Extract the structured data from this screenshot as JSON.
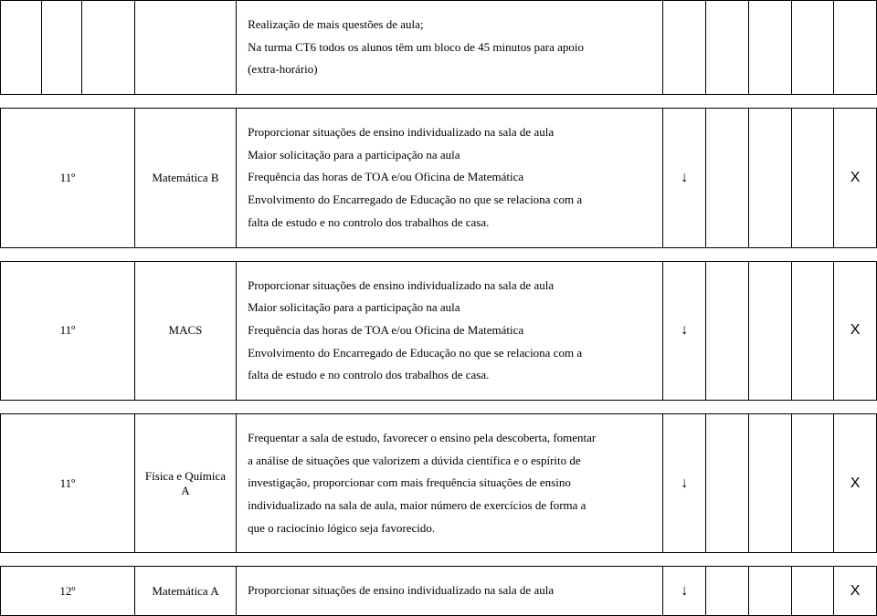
{
  "rows": [
    {
      "grade": "",
      "subject": "",
      "content_lines": [
        "Realização de mais questões de aula;",
        "Na turma CT6 todos os alunos têm um bloco de 45 minutos para apoio",
        "(extra-horário)"
      ],
      "col_f": "",
      "col_g": "",
      "col_h": "",
      "col_i": "",
      "col_j": "",
      "show_lead_cols": true
    },
    {
      "grade": "11º",
      "subject": "Matemática B",
      "content_lines": [
        "Proporcionar situações de ensino individualizado na sala de aula",
        "Maior  solicitação para a participação na aula",
        "Frequência das horas de TOA e/ou Oficina de Matemática",
        "Envolvimento do Encarregado de Educação no que se relaciona com a",
        "falta de estudo e no controlo dos trabalhos de casa."
      ],
      "col_f": "↓",
      "col_g": "",
      "col_h": "",
      "col_i": "",
      "col_j": "X",
      "show_lead_cols": false
    },
    {
      "grade": "11º",
      "subject": "MACS",
      "content_lines": [
        "Proporcionar situações de ensino individualizado na sala de aula",
        "Maior  solicitação para a participação na aula",
        "Frequência das horas de TOA e/ou Oficina de Matemática",
        "Envolvimento do Encarregado de Educação no que se relaciona com a",
        "falta de estudo e no controlo dos trabalhos de casa."
      ],
      "col_f": "↓",
      "col_g": "",
      "col_h": "",
      "col_i": "",
      "col_j": "X",
      "show_lead_cols": false
    },
    {
      "grade": "11º",
      "subject": "Física e Química A",
      "content_lines": [
        "Frequentar a sala de estudo, favorecer o ensino pela descoberta, fomentar",
        "a análise de situações que valorizem a dúvida científica e o espírito de",
        "investigação, proporcionar com mais frequência situações de ensino",
        "individualizado na sala de aula, maior número de exercícios de forma a",
        "que o raciocínio lógico seja favorecido."
      ],
      "col_f": "↓",
      "col_g": "",
      "col_h": "",
      "col_i": "",
      "col_j": "X",
      "show_lead_cols": false
    },
    {
      "grade": "12º",
      "subject": "Matemática A",
      "content_lines": [
        "Proporcionar situações de ensino individualizado na sala de aula"
      ],
      "col_f": "↓",
      "col_g": "",
      "col_h": "",
      "col_i": "",
      "col_j": "X",
      "show_lead_cols": false
    }
  ]
}
